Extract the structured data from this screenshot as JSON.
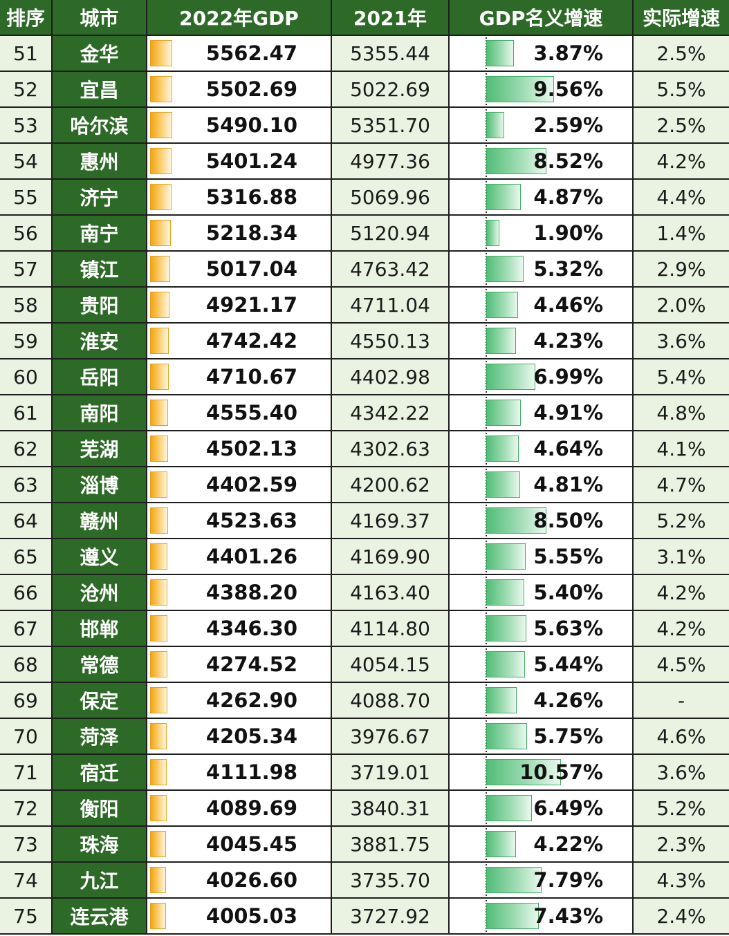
{
  "chart_data": {
    "type": "table",
    "columns": [
      "排序",
      "城市",
      "2022年GDP",
      "2021年",
      "GDP名义增速",
      "实际增速"
    ],
    "rows": [
      {
        "rank": "51",
        "city": "金华",
        "gdp2022": "5562.47",
        "gdp2021": "5355.44",
        "nominal": "3.87%",
        "real": "2.5%"
      },
      {
        "rank": "52",
        "city": "宜昌",
        "gdp2022": "5502.69",
        "gdp2021": "5022.69",
        "nominal": "9.56%",
        "real": "5.5%"
      },
      {
        "rank": "53",
        "city": "哈尔滨",
        "gdp2022": "5490.10",
        "gdp2021": "5351.70",
        "nominal": "2.59%",
        "real": "2.5%"
      },
      {
        "rank": "54",
        "city": "惠州",
        "gdp2022": "5401.24",
        "gdp2021": "4977.36",
        "nominal": "8.52%",
        "real": "4.2%"
      },
      {
        "rank": "55",
        "city": "济宁",
        "gdp2022": "5316.88",
        "gdp2021": "5069.96",
        "nominal": "4.87%",
        "real": "4.4%"
      },
      {
        "rank": "56",
        "city": "南宁",
        "gdp2022": "5218.34",
        "gdp2021": "5120.94",
        "nominal": "1.90%",
        "real": "1.4%"
      },
      {
        "rank": "57",
        "city": "镇江",
        "gdp2022": "5017.04",
        "gdp2021": "4763.42",
        "nominal": "5.32%",
        "real": "2.9%"
      },
      {
        "rank": "58",
        "city": "贵阳",
        "gdp2022": "4921.17",
        "gdp2021": "4711.04",
        "nominal": "4.46%",
        "real": "2.0%"
      },
      {
        "rank": "59",
        "city": "淮安",
        "gdp2022": "4742.42",
        "gdp2021": "4550.13",
        "nominal": "4.23%",
        "real": "3.6%"
      },
      {
        "rank": "60",
        "city": "岳阳",
        "gdp2022": "4710.67",
        "gdp2021": "4402.98",
        "nominal": "6.99%",
        "real": "5.4%"
      },
      {
        "rank": "61",
        "city": "南阳",
        "gdp2022": "4555.40",
        "gdp2021": "4342.22",
        "nominal": "4.91%",
        "real": "4.8%"
      },
      {
        "rank": "62",
        "city": "芜湖",
        "gdp2022": "4502.13",
        "gdp2021": "4302.63",
        "nominal": "4.64%",
        "real": "4.1%"
      },
      {
        "rank": "63",
        "city": "淄博",
        "gdp2022": "4402.59",
        "gdp2021": "4200.62",
        "nominal": "4.81%",
        "real": "4.7%"
      },
      {
        "rank": "64",
        "city": "赣州",
        "gdp2022": "4523.63",
        "gdp2021": "4169.37",
        "nominal": "8.50%",
        "real": "5.2%"
      },
      {
        "rank": "65",
        "city": "遵义",
        "gdp2022": "4401.26",
        "gdp2021": "4169.90",
        "nominal": "5.55%",
        "real": "3.1%"
      },
      {
        "rank": "66",
        "city": "沧州",
        "gdp2022": "4388.20",
        "gdp2021": "4163.40",
        "nominal": "5.40%",
        "real": "4.2%"
      },
      {
        "rank": "67",
        "city": "邯郸",
        "gdp2022": "4346.30",
        "gdp2021": "4114.80",
        "nominal": "5.63%",
        "real": "4.2%"
      },
      {
        "rank": "68",
        "city": "常德",
        "gdp2022": "4274.52",
        "gdp2021": "4054.15",
        "nominal": "5.44%",
        "real": "4.5%"
      },
      {
        "rank": "69",
        "city": "保定",
        "gdp2022": "4262.90",
        "gdp2021": "4088.70",
        "nominal": "4.26%",
        "real": "-"
      },
      {
        "rank": "70",
        "city": "菏泽",
        "gdp2022": "4205.34",
        "gdp2021": "3976.67",
        "nominal": "5.75%",
        "real": "4.6%"
      },
      {
        "rank": "71",
        "city": "宿迁",
        "gdp2022": "4111.98",
        "gdp2021": "3719.01",
        "nominal": "10.57%",
        "real": "3.6%"
      },
      {
        "rank": "72",
        "city": "衡阳",
        "gdp2022": "4089.69",
        "gdp2021": "3840.31",
        "nominal": "6.49%",
        "real": "5.2%"
      },
      {
        "rank": "73",
        "city": "珠海",
        "gdp2022": "4045.45",
        "gdp2021": "3881.75",
        "nominal": "4.22%",
        "real": "2.3%"
      },
      {
        "rank": "74",
        "city": "九江",
        "gdp2022": "4026.60",
        "gdp2021": "3735.70",
        "nominal": "7.79%",
        "real": "4.3%"
      },
      {
        "rank": "75",
        "city": "连云港",
        "gdp2022": "4005.03",
        "gdp2021": "3727.92",
        "nominal": "7.43%",
        "real": "2.4%"
      }
    ]
  },
  "colors": {
    "header_bg": "#2e6a27",
    "light_cell_bg": "#eaf3e2",
    "gdp_bar": "#f6a410",
    "growth_bar": "#52bd78",
    "border": "#1e1e1e"
  }
}
